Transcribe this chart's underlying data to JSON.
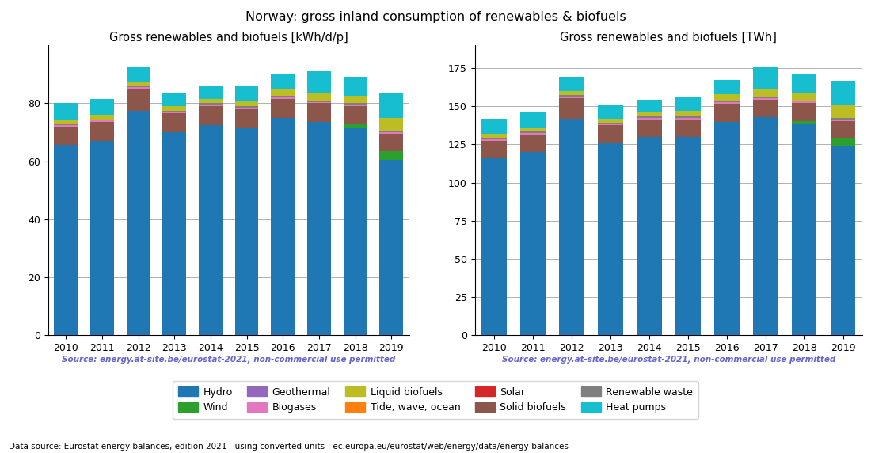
{
  "years": [
    2010,
    2011,
    2012,
    2013,
    2014,
    2015,
    2016,
    2017,
    2018,
    2019
  ],
  "title": "Norway: gross inland consumption of renewables & biofuels",
  "subtitle_left": "Gross renewables and biofuels [kWh/d/p]",
  "subtitle_right": "Gross renewables and biofuels [TWh]",
  "source_text": "Source: energy.at-site.be/eurostat-2021, non-commercial use permitted",
  "footer_text": "Data source: Eurostat energy balances, edition 2021 - using converted units - ec.europa.eu/eurostat/web/energy/data/energy-balances",
  "categories": [
    "Hydro",
    "Tide, wave, ocean",
    "Wind",
    "Solar",
    "Solid biofuels",
    "Geothermal",
    "Biogases",
    "Renewable waste",
    "Liquid biofuels",
    "Heat pumps"
  ],
  "colors": [
    "#1f77b4",
    "#ff7f0e",
    "#2ca02c",
    "#d62728",
    "#8c564b",
    "#9467bd",
    "#e377c2",
    "#7f7f7f",
    "#bcbd22",
    "#17becf"
  ],
  "data_kwh": {
    "Hydro": [
      65.5,
      67.0,
      77.5,
      70.0,
      72.5,
      71.5,
      75.0,
      73.5,
      71.5,
      60.5
    ],
    "Tide, wave, ocean": [
      0.0,
      0.0,
      0.0,
      0.0,
      0.0,
      0.0,
      0.0,
      0.0,
      0.0,
      0.0
    ],
    "Wind": [
      0.0,
      0.0,
      0.0,
      0.0,
      0.0,
      0.0,
      0.0,
      0.0,
      1.5,
      3.0
    ],
    "Solar": [
      0.0,
      0.0,
      0.0,
      0.0,
      0.0,
      0.0,
      0.0,
      0.0,
      0.0,
      0.0
    ],
    "Solid biofuels": [
      6.5,
      6.5,
      7.5,
      6.5,
      6.5,
      6.5,
      6.5,
      6.5,
      6.0,
      6.0
    ],
    "Geothermal": [
      0.0,
      0.0,
      0.0,
      0.0,
      0.0,
      0.0,
      0.0,
      0.0,
      0.0,
      0.0
    ],
    "Biogases": [
      0.5,
      0.5,
      0.5,
      0.5,
      0.5,
      0.5,
      0.5,
      0.5,
      0.5,
      0.5
    ],
    "Renewable waste": [
      0.5,
      0.5,
      0.5,
      0.5,
      0.5,
      0.5,
      0.5,
      0.5,
      0.5,
      0.5
    ],
    "Liquid biofuels": [
      1.5,
      1.5,
      1.5,
      1.5,
      1.5,
      2.0,
      2.5,
      2.5,
      2.5,
      4.5
    ],
    "Heat pumps": [
      5.5,
      5.5,
      5.0,
      4.5,
      4.5,
      5.0,
      5.0,
      7.5,
      6.5,
      8.5
    ]
  },
  "data_twh": {
    "Hydro": [
      116.0,
      120.0,
      142.0,
      126.0,
      130.0,
      130.0,
      140.0,
      143.0,
      138.0,
      124.0
    ],
    "Tide, wave, ocean": [
      0.0,
      0.0,
      0.0,
      0.0,
      0.0,
      0.0,
      0.0,
      0.0,
      0.0,
      0.0
    ],
    "Wind": [
      0.0,
      0.0,
      0.0,
      0.0,
      0.0,
      0.0,
      0.0,
      0.0,
      2.5,
      5.5
    ],
    "Solar": [
      0.0,
      0.0,
      0.0,
      0.0,
      0.0,
      0.0,
      0.0,
      0.0,
      0.0,
      0.0
    ],
    "Solid biofuels": [
      11.5,
      11.5,
      13.5,
      11.5,
      11.5,
      11.5,
      11.5,
      11.5,
      11.5,
      11.0
    ],
    "Geothermal": [
      0.0,
      0.0,
      0.0,
      0.0,
      0.0,
      0.0,
      0.0,
      0.0,
      0.0,
      0.0
    ],
    "Biogases": [
      1.0,
      1.0,
      1.0,
      1.0,
      1.0,
      1.0,
      1.0,
      1.0,
      1.0,
      1.0
    ],
    "Renewable waste": [
      1.0,
      1.0,
      1.0,
      1.0,
      1.0,
      1.0,
      1.0,
      1.0,
      1.0,
      1.0
    ],
    "Liquid biofuels": [
      2.5,
      2.5,
      2.5,
      2.5,
      2.5,
      3.5,
      4.5,
      5.0,
      5.0,
      8.5
    ],
    "Heat pumps": [
      10.0,
      10.0,
      9.5,
      8.5,
      8.5,
      9.0,
      9.5,
      14.0,
      12.0,
      16.0
    ]
  },
  "ylim_kwh": [
    0,
    100
  ],
  "ylim_twh": [
    0,
    190
  ],
  "yticks_kwh": [
    0,
    20,
    40,
    60,
    80
  ],
  "yticks_twh": [
    0,
    25,
    50,
    75,
    100,
    125,
    150,
    175
  ],
  "source_color": "#6666cc",
  "footer_color": "#000000"
}
